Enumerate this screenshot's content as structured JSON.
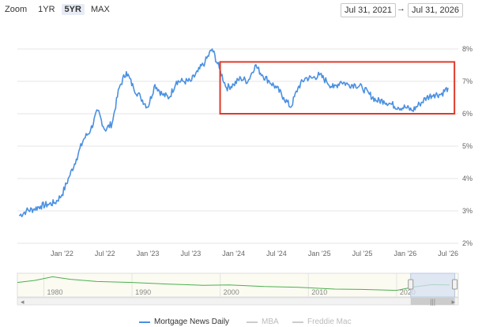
{
  "zoom": {
    "label": "Zoom",
    "options": [
      "1YR",
      "5YR",
      "MAX"
    ],
    "active": "5YR"
  },
  "date_range": {
    "from": "Jul 31, 2021",
    "to": "Jul 31, 2026",
    "separator": "→"
  },
  "colors": {
    "primary_series": "#4a90e2",
    "highlight_box": "#e03a2a",
    "navigator_line": "#4caf50",
    "inactive_legend": "#cccccc",
    "navigator_mask": "#d4e0f2"
  },
  "chart_data": {
    "type": "line",
    "y_axis_side": "right",
    "ylim": [
      2,
      8
    ],
    "y_ticks": [
      "2%",
      "3%",
      "4%",
      "5%",
      "6%",
      "7%",
      "8%"
    ],
    "x_ticks": [
      {
        "label": "Jan '22",
        "x": "2022-01"
      },
      {
        "label": "Jul '22",
        "x": "2022-07"
      },
      {
        "label": "Jan '23",
        "x": "2023-01"
      },
      {
        "label": "Jul '23",
        "x": "2023-07"
      },
      {
        "label": "Jan '24",
        "x": "2024-01"
      },
      {
        "label": "Jul '24",
        "x": "2024-07"
      },
      {
        "label": "Jan '25",
        "x": "2025-01"
      },
      {
        "label": "Jul '25",
        "x": "2025-07"
      },
      {
        "label": "Jan '26",
        "x": "2026-01"
      },
      {
        "label": "Jul '26",
        "x": "2026-07"
      }
    ],
    "series": [
      {
        "name": "Mortgage News Daily",
        "points": [
          [
            "2021-07",
            2.85
          ],
          [
            "2021-08",
            3.0
          ],
          [
            "2021-09",
            3.05
          ],
          [
            "2021-10",
            3.15
          ],
          [
            "2021-11",
            3.2
          ],
          [
            "2021-12",
            3.25
          ],
          [
            "2022-01",
            3.5
          ],
          [
            "2022-02",
            4.05
          ],
          [
            "2022-03",
            4.6
          ],
          [
            "2022-04",
            5.2
          ],
          [
            "2022-05",
            5.5
          ],
          [
            "2022-06",
            6.1
          ],
          [
            "2022-07",
            5.5
          ],
          [
            "2022-08",
            5.7
          ],
          [
            "2022-09",
            6.8
          ],
          [
            "2022-10",
            7.3
          ],
          [
            "2022-11",
            6.8
          ],
          [
            "2022-12",
            6.5
          ],
          [
            "2023-01",
            6.2
          ],
          [
            "2023-02",
            6.9
          ],
          [
            "2023-03",
            6.6
          ],
          [
            "2023-04",
            6.5
          ],
          [
            "2023-05",
            7.0
          ],
          [
            "2023-06",
            7.0
          ],
          [
            "2023-07",
            7.0
          ],
          [
            "2023-08",
            7.3
          ],
          [
            "2023-09",
            7.6
          ],
          [
            "2023-10",
            8.0
          ],
          [
            "2023-11",
            7.4
          ],
          [
            "2023-12",
            6.8
          ],
          [
            "2024-01",
            6.9
          ],
          [
            "2024-02",
            7.1
          ],
          [
            "2024-03",
            7.0
          ],
          [
            "2024-04",
            7.5
          ],
          [
            "2024-05",
            7.2
          ],
          [
            "2024-06",
            7.0
          ],
          [
            "2024-07",
            6.8
          ],
          [
            "2024-08",
            6.5
          ],
          [
            "2024-09",
            6.2
          ],
          [
            "2024-10",
            6.8
          ],
          [
            "2024-11",
            7.1
          ],
          [
            "2024-12",
            7.1
          ],
          [
            "2025-01",
            7.2
          ],
          [
            "2025-02",
            7.0
          ],
          [
            "2025-03",
            6.8
          ],
          [
            "2025-04",
            7.0
          ],
          [
            "2025-05",
            6.9
          ],
          [
            "2025-06",
            6.9
          ],
          [
            "2025-07",
            6.8
          ],
          [
            "2025-08",
            6.6
          ],
          [
            "2025-09",
            6.4
          ],
          [
            "2025-10",
            6.4
          ],
          [
            "2025-11",
            6.3
          ],
          [
            "2025-12",
            6.2
          ],
          [
            "2026-01",
            6.2
          ],
          [
            "2026-02",
            6.1
          ],
          [
            "2026-03",
            6.3
          ],
          [
            "2026-04",
            6.5
          ],
          [
            "2026-05",
            6.6
          ],
          [
            "2026-06",
            6.6
          ],
          [
            "2026-07",
            6.8
          ]
        ]
      }
    ],
    "highlight_box": {
      "x": [
        "2023-11",
        "2026-07"
      ],
      "y": [
        6.0,
        7.6
      ]
    }
  },
  "navigator": {
    "x_ticks": [
      {
        "label": "1980",
        "year": 1980
      },
      {
        "label": "1990",
        "year": 1990
      },
      {
        "label": "2000",
        "year": 2000
      },
      {
        "label": "2010",
        "year": 2010
      },
      {
        "label": "2020",
        "year": 2020
      }
    ],
    "year_range": [
      1977,
      2027
    ],
    "selected": [
      2021.6,
      2026.6
    ],
    "scrollbar_grip": "|||"
  },
  "legend": [
    {
      "label": "Mortgage News Daily",
      "active": true
    },
    {
      "label": "MBA",
      "active": false
    },
    {
      "label": "Freddie Mac",
      "active": false
    }
  ]
}
